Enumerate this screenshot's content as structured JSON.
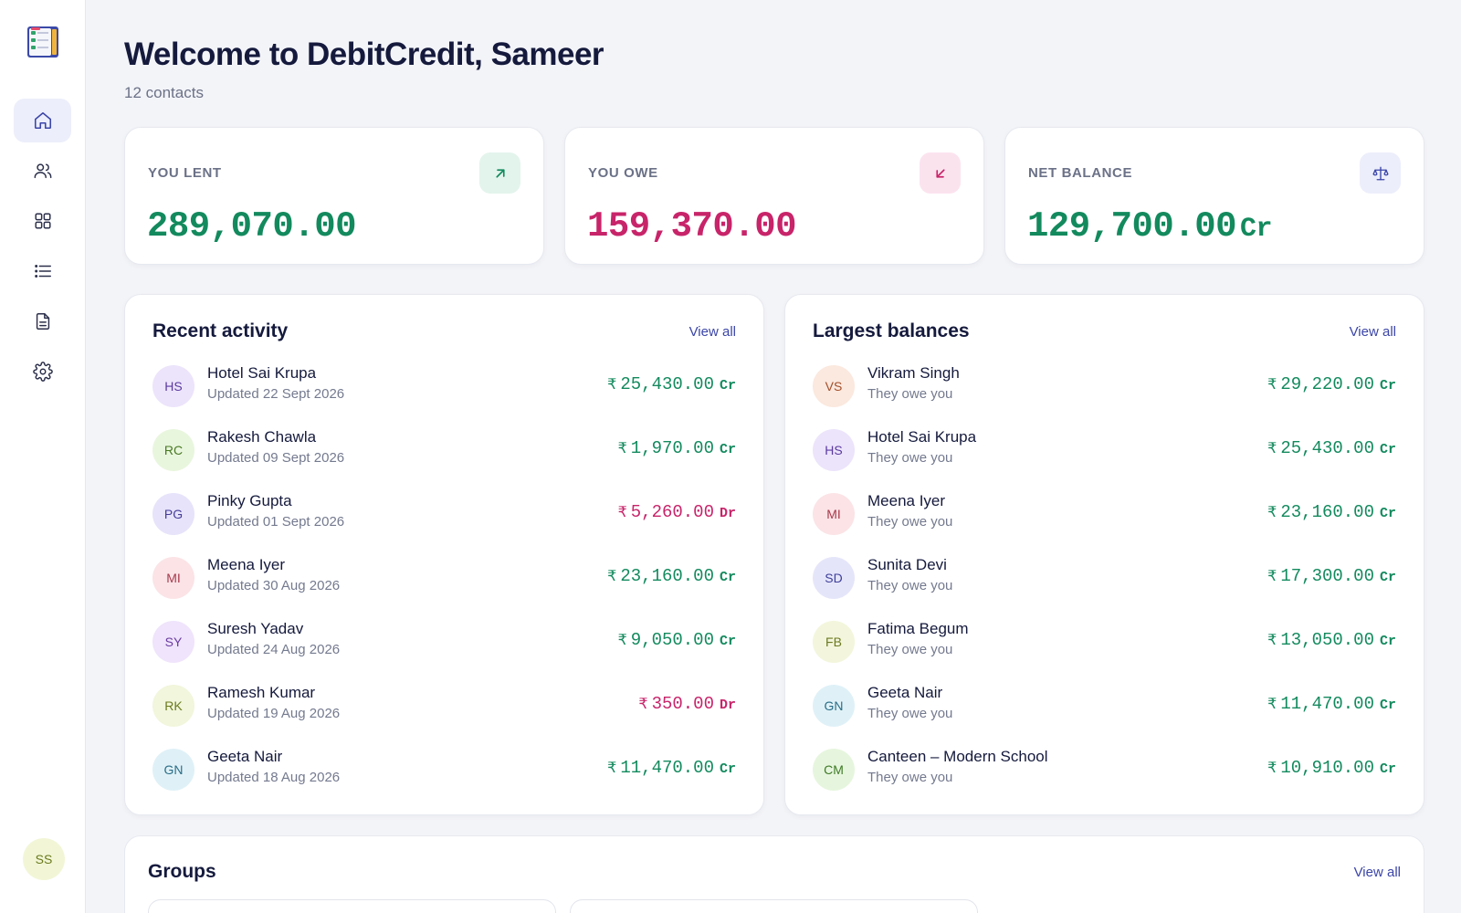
{
  "sidebar": {
    "logo_icon": "ledger-checklist-icon",
    "items": [
      {
        "icon": "home-icon",
        "active": true
      },
      {
        "icon": "users-icon",
        "active": false
      },
      {
        "icon": "grid-icon",
        "active": false
      },
      {
        "icon": "list-icon",
        "active": false
      },
      {
        "icon": "document-icon",
        "active": false
      },
      {
        "icon": "gear-icon",
        "active": false
      }
    ],
    "user_initials": "SS"
  },
  "header": {
    "title": "Welcome to DebitCredit, Sameer",
    "subtitle": "12 contacts"
  },
  "stats": {
    "lent": {
      "label": "YOU LENT",
      "value": "289,070.00",
      "icon": "arrow-up-right-icon",
      "color": "#138a5e"
    },
    "owe": {
      "label": "YOU OWE",
      "value": "159,370.00",
      "icon": "arrow-down-left-icon",
      "color": "#c8246a"
    },
    "net": {
      "label": "NET BALANCE",
      "value": "129,700.00",
      "suffix": "Cr",
      "icon": "scale-icon",
      "color": "#138a5e"
    }
  },
  "recent": {
    "title": "Recent activity",
    "view_all": "View all",
    "rows": [
      {
        "initials": "HS",
        "name": "Hotel Sai Krupa",
        "sub": "Updated 22 Sept 2026",
        "currency": "₹",
        "amount": "25,430.00",
        "type": "Cr"
      },
      {
        "initials": "RC",
        "name": "Rakesh Chawla",
        "sub": "Updated 09 Sept 2026",
        "currency": "₹",
        "amount": "1,970.00",
        "type": "Cr"
      },
      {
        "initials": "PG",
        "name": "Pinky Gupta",
        "sub": "Updated 01 Sept 2026",
        "currency": "₹",
        "amount": "5,260.00",
        "type": "Dr"
      },
      {
        "initials": "MI",
        "name": "Meena Iyer",
        "sub": "Updated 30 Aug 2026",
        "currency": "₹",
        "amount": "23,160.00",
        "type": "Cr"
      },
      {
        "initials": "SY",
        "name": "Suresh Yadav",
        "sub": "Updated 24 Aug 2026",
        "currency": "₹",
        "amount": "9,050.00",
        "type": "Cr"
      },
      {
        "initials": "RK",
        "name": "Ramesh Kumar",
        "sub": "Updated 19 Aug 2026",
        "currency": "₹",
        "amount": "350.00",
        "type": "Dr"
      },
      {
        "initials": "GN",
        "name": "Geeta Nair",
        "sub": "Updated 18 Aug 2026",
        "currency": "₹",
        "amount": "11,470.00",
        "type": "Cr"
      }
    ]
  },
  "largest": {
    "title": "Largest balances",
    "view_all": "View all",
    "rows": [
      {
        "initials": "VS",
        "name": "Vikram Singh",
        "sub": "They owe you",
        "currency": "₹",
        "amount": "29,220.00",
        "type": "Cr"
      },
      {
        "initials": "HS",
        "name": "Hotel Sai Krupa",
        "sub": "They owe you",
        "currency": "₹",
        "amount": "25,430.00",
        "type": "Cr"
      },
      {
        "initials": "MI",
        "name": "Meena Iyer",
        "sub": "They owe you",
        "currency": "₹",
        "amount": "23,160.00",
        "type": "Cr"
      },
      {
        "initials": "SD",
        "name": "Sunita Devi",
        "sub": "They owe you",
        "currency": "₹",
        "amount": "17,300.00",
        "type": "Cr"
      },
      {
        "initials": "FB",
        "name": "Fatima Begum",
        "sub": "They owe you",
        "currency": "₹",
        "amount": "13,050.00",
        "type": "Cr"
      },
      {
        "initials": "GN",
        "name": "Geeta Nair",
        "sub": "They owe you",
        "currency": "₹",
        "amount": "11,470.00",
        "type": "Cr"
      },
      {
        "initials": "CM",
        "name": "Canteen – Modern School",
        "sub": "They owe you",
        "currency": "₹",
        "amount": "10,910.00",
        "type": "Cr"
      }
    ]
  },
  "groups": {
    "title": "Groups",
    "view_all": "View all"
  },
  "avatar_colors": {
    "HS": [
      "#ece4fb",
      "#5b3aa0"
    ],
    "RC": [
      "#e9f6de",
      "#4a7a24"
    ],
    "PG": [
      "#e6e3fa",
      "#473d99"
    ],
    "MI": [
      "#fbe3e6",
      "#a83a4c"
    ],
    "SY": [
      "#efe4fb",
      "#6a3aa0"
    ],
    "RK": [
      "#f1f6dc",
      "#6b7a1e"
    ],
    "GN": [
      "#dff1f7",
      "#2a6d86"
    ],
    "VS": [
      "#fbe8de",
      "#a2502b"
    ],
    "SD": [
      "#e5e5fa",
      "#3e3f99"
    ],
    "FB": [
      "#f3f6dc",
      "#6e7a22"
    ],
    "CM": [
      "#e6f6de",
      "#3f7a26"
    ]
  }
}
